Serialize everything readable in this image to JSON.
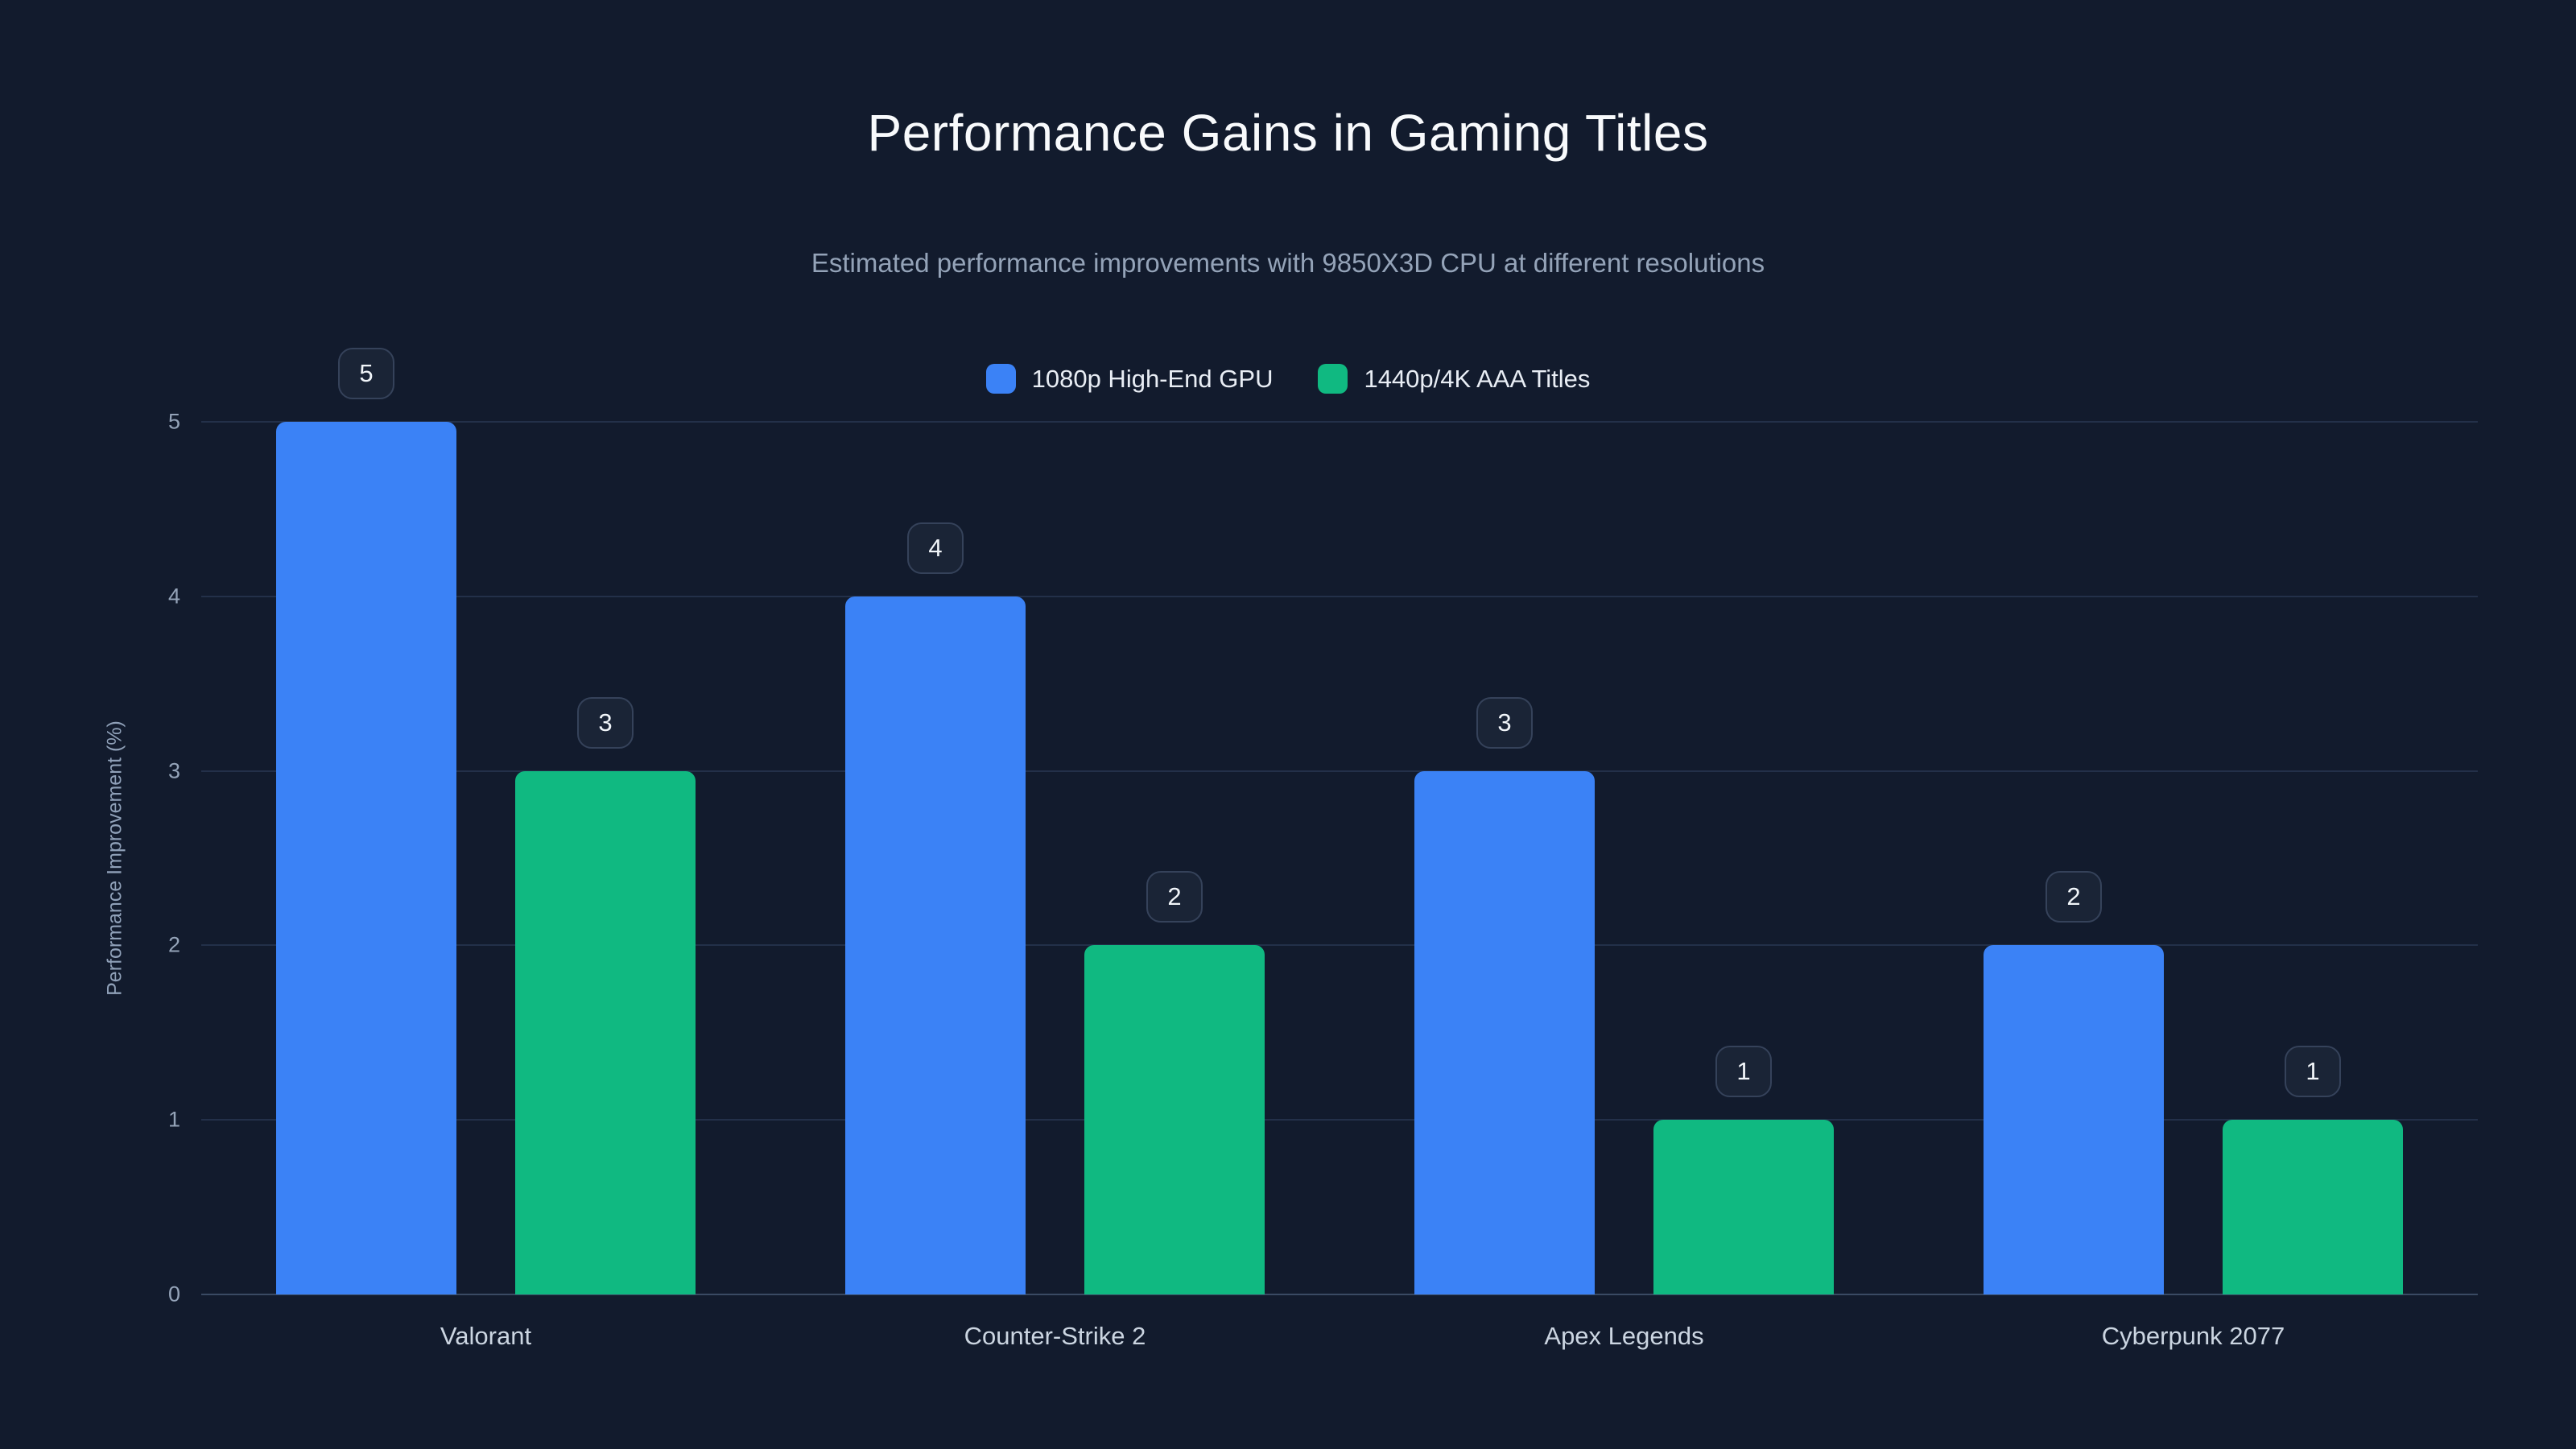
{
  "title": "Performance Gains in Gaming Titles",
  "subtitle": "Estimated performance improvements with 9850X3D CPU at different resolutions",
  "chart_data": {
    "type": "bar",
    "title": "Performance Gains in Gaming Titles",
    "subtitle": "Estimated performance improvements with 9850X3D CPU at different resolutions",
    "categories": [
      "Valorant",
      "Counter-Strike 2",
      "Apex Legends",
      "Cyberpunk 2077"
    ],
    "series": [
      {
        "name": "1080p High-End GPU",
        "color": "#3b82f6",
        "values": [
          5,
          4,
          3,
          2
        ]
      },
      {
        "name": "1440p/4K AAA Titles",
        "color": "#10b981",
        "values": [
          3,
          2,
          1,
          1
        ]
      }
    ],
    "xlabel": "",
    "ylabel": "Performance Improvement (%)",
    "ylim": [
      0,
      5
    ],
    "yticks": [
      0,
      1,
      2,
      3,
      4,
      5
    ],
    "grid": true,
    "legend_position": "top",
    "value_labels": true
  },
  "colors": {
    "background": "#121b2d",
    "title": "#f8fafc",
    "subtitle": "#94a3b8",
    "gridline": "#233049",
    "axis_line": "#3a4a63",
    "tick_label": "#94a3b8",
    "category_label": "#cbd5e1",
    "badge_bg": "#1a2436",
    "badge_border": "#35425a",
    "badge_text": "#f1f5f9",
    "series_blue": "#3b82f6",
    "series_green": "#10b981"
  }
}
